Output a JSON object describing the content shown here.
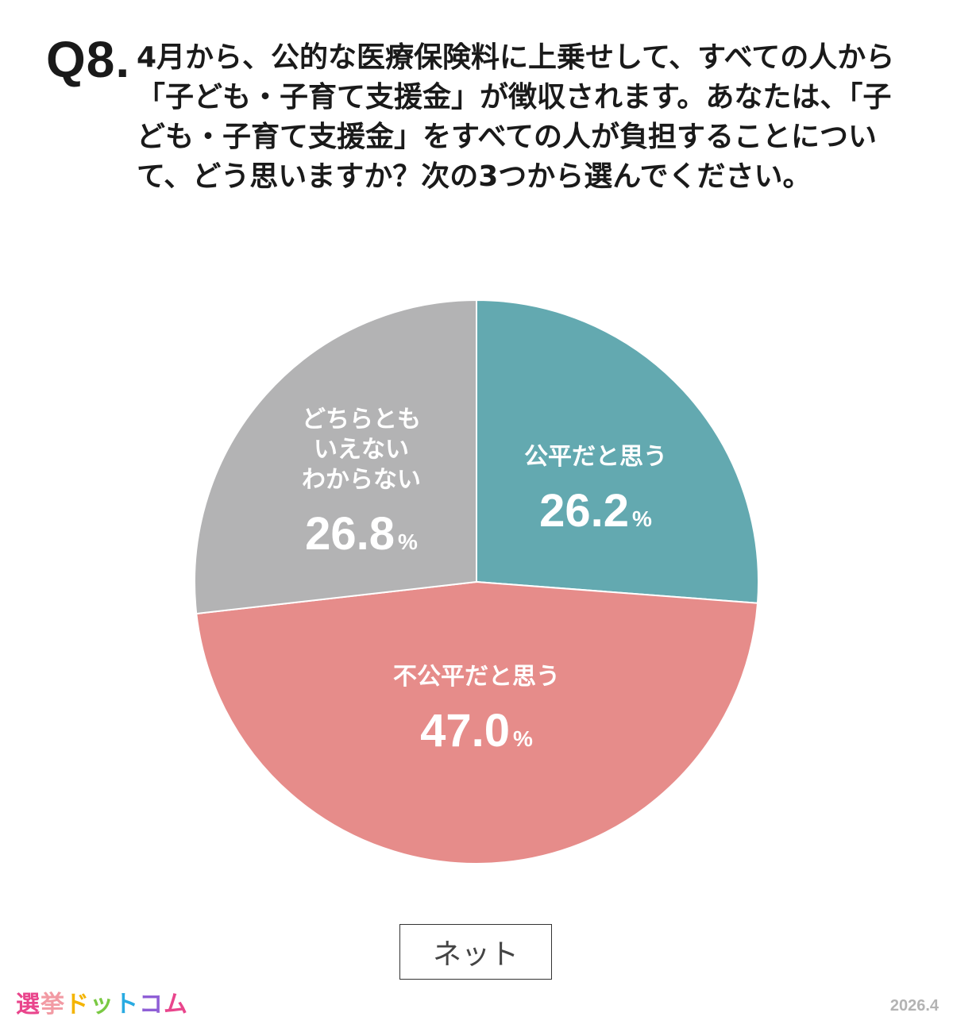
{
  "question": {
    "number": "Q8.",
    "text": "4月から、公的な医療保険料に上乗せして、すべての人から「子ども・子育て支援金」が徴収されます。あなたは、「子ども・子育て支援金」をすべての人が負担することについて、どう思いますか？次の3つから選んでください。"
  },
  "chart_data": {
    "type": "pie",
    "title": "",
    "slices": [
      {
        "label": "公平だと思う",
        "value": 26.2,
        "display": "26.2",
        "color": "#63a9b0"
      },
      {
        "label": "不公平だと思う",
        "value": 47.0,
        "display": "47.0",
        "color": "#e68c8a"
      },
      {
        "label": "どちらとも\nいえない\nわからない",
        "value": 26.8,
        "display": "26.8",
        "color": "#b3b3b4"
      }
    ],
    "unit": "%",
    "start": "12 o'clock, clockwise"
  },
  "footer": {
    "source_label": "ネット",
    "logo": {
      "text": "選挙ドットコム",
      "colors": [
        "#e9458c",
        "#f29aa3",
        "#f4b400",
        "#7ac943",
        "#29abe2",
        "#8f5fd6",
        "#e9458c"
      ]
    },
    "date": "2026.4"
  }
}
